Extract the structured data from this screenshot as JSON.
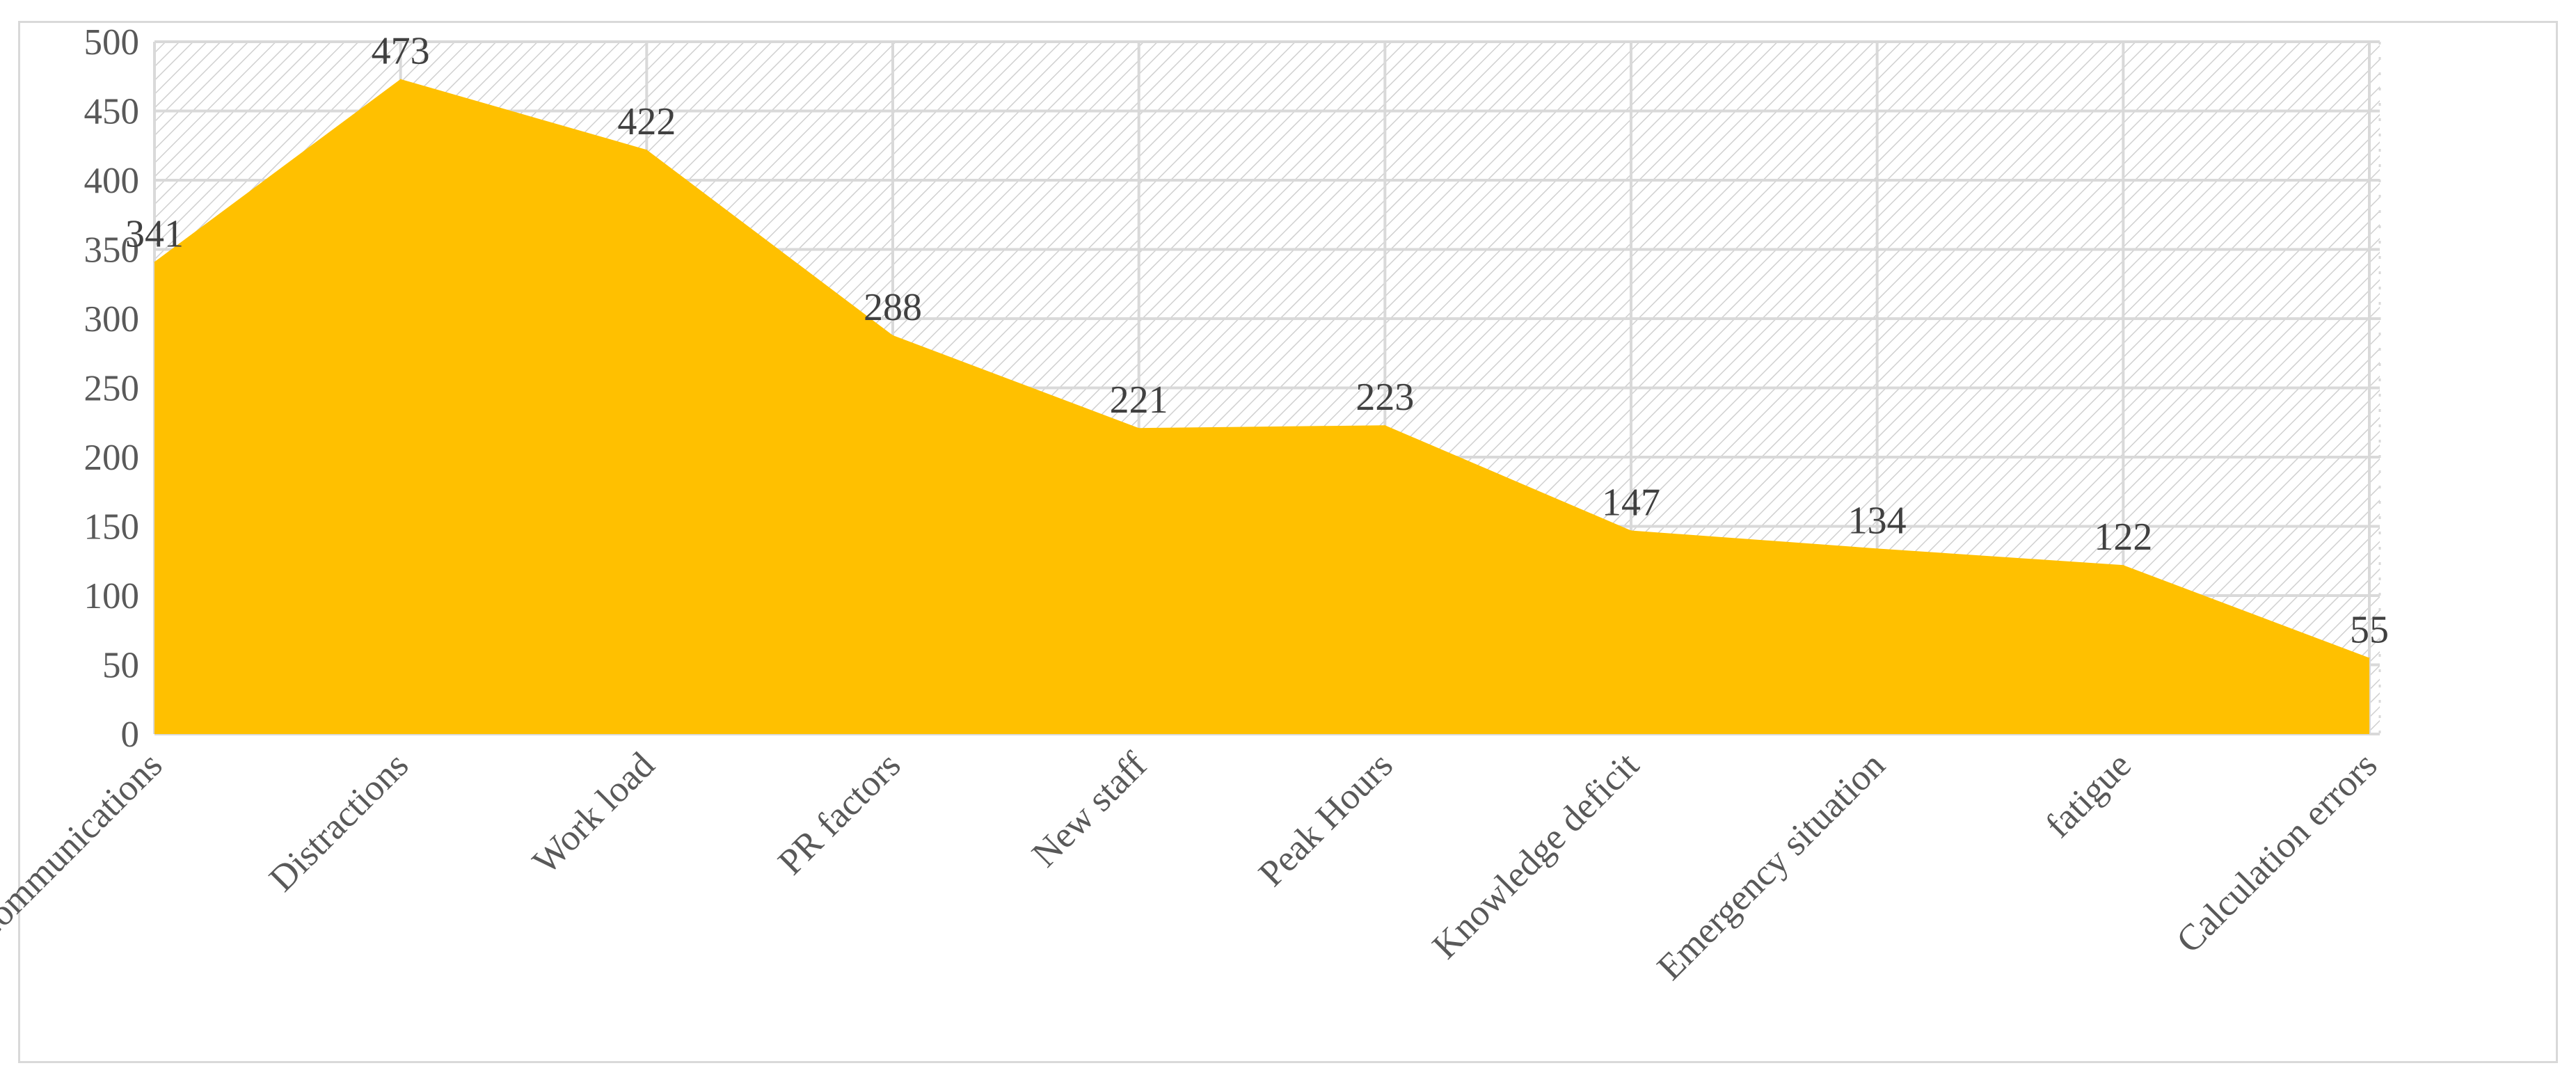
{
  "chart_data": {
    "type": "area",
    "categories": [
      "Communications",
      "Distractions",
      "Work load",
      "PR factors",
      "New staff",
      "Peak Hours",
      "Knowledge deficit",
      "Emergency situation",
      "fatigue",
      "Calculation errors"
    ],
    "series": [
      {
        "values": [
          341,
          473,
          422,
          288,
          221,
          223,
          147,
          134,
          122,
          55
        ]
      }
    ],
    "data_labels": [
      "341",
      "473",
      "422",
      "288",
      "221",
      "223",
      "147",
      "134",
      "122",
      "55"
    ],
    "y_ticks": [
      "0",
      "50",
      "100",
      "150",
      "200",
      "250",
      "300",
      "350",
      "400",
      "450",
      "500"
    ],
    "ylim": [
      0,
      500
    ],
    "title": "",
    "xlabel": "",
    "ylabel": "",
    "grid": true,
    "legend": "none",
    "colors": {
      "area": "#ffc000",
      "grid": "#d9d9d9",
      "hatch": "#d0d0d0"
    }
  }
}
